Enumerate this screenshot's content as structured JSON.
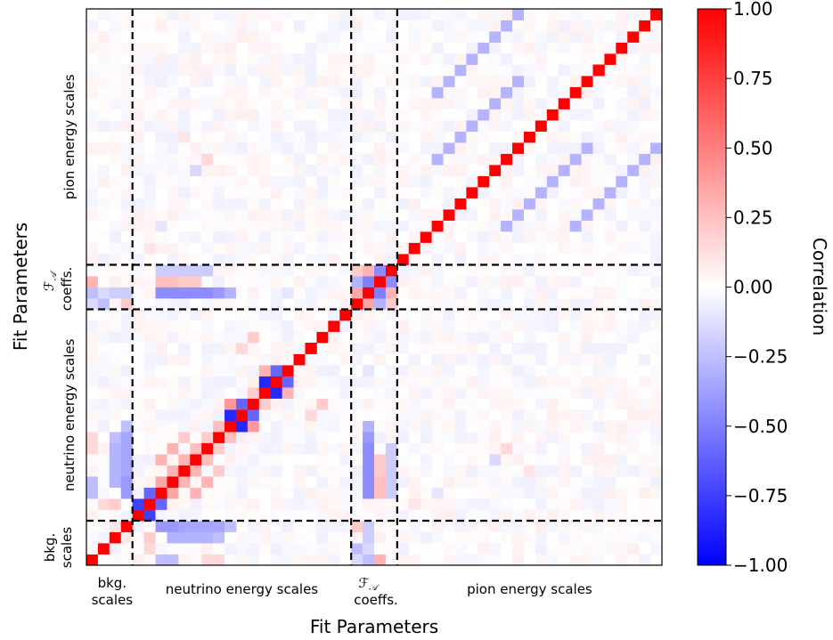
{
  "chart_data": {
    "type": "heatmap",
    "title": "",
    "xlabel": "Fit Parameters",
    "ylabel": "Fit Parameters",
    "n": 50,
    "colorbar": {
      "label": "Correlation",
      "vmin": -1.0,
      "vmax": 1.0,
      "ticks": [
        1.0,
        0.75,
        0.5,
        0.25,
        0.0,
        -0.25,
        -0.5,
        -0.75,
        -1.0
      ],
      "tick_labels": [
        "1.00",
        "0.75",
        "0.50",
        "0.25",
        "0.00",
        "−0.25",
        "−0.50",
        "−0.75",
        "−1.00"
      ],
      "colormap": "bwr",
      "colors": {
        "low": "#0000ff",
        "mid": "#ffffff",
        "high": "#ff0000"
      }
    },
    "groups": [
      {
        "label_lines": [
          "bkg.",
          "scales"
        ],
        "start": 0,
        "end": 4
      },
      {
        "label_lines": [
          "neutrino energy scales"
        ],
        "start": 4,
        "end": 23
      },
      {
        "label_lines": [
          "F_A",
          "coeffs."
        ],
        "start": 23,
        "end": 27
      },
      {
        "label_lines": [
          "pion energy scales"
        ],
        "start": 27,
        "end": 50
      }
    ],
    "group_label_text": {
      "bkg": [
        "bkg.",
        "scales"
      ],
      "neutrino": "neutrino energy scales",
      "fa_symbol": "ℱ",
      "fa_sub": "𝒜",
      "fa_coeffs": "coeffs.",
      "pion": "pion energy scales"
    },
    "boundaries": [
      4,
      23,
      27
    ],
    "diagonal_value": 1.0,
    "correlations": [
      {
        "i": 4,
        "j": 5,
        "value": -0.75
      },
      {
        "i": 5,
        "j": 6,
        "value": -0.6
      },
      {
        "i": 6,
        "j": 7,
        "value": 0.35
      },
      {
        "i": 7,
        "j": 8,
        "value": 0.3
      },
      {
        "i": 8,
        "j": 9,
        "value": 0.3
      },
      {
        "i": 9,
        "j": 10,
        "value": 0.25
      },
      {
        "i": 10,
        "j": 11,
        "value": 0.2
      },
      {
        "i": 12,
        "j": 13,
        "value": -0.85
      },
      {
        "i": 13,
        "j": 14,
        "value": -0.6
      },
      {
        "i": 12,
        "j": 14,
        "value": 0.4
      },
      {
        "i": 11,
        "j": 12,
        "value": 0.25
      },
      {
        "i": 15,
        "j": 16,
        "value": -0.85
      },
      {
        "i": 16,
        "j": 17,
        "value": -0.6
      },
      {
        "i": 15,
        "j": 17,
        "value": 0.3
      },
      {
        "i": 14,
        "j": 15,
        "value": 0.2
      },
      {
        "i": 7,
        "j": 10,
        "value": 0.3
      },
      {
        "i": 6,
        "j": 9,
        "value": 0.3
      },
      {
        "i": 8,
        "j": 11,
        "value": 0.2
      },
      {
        "i": 24,
        "j": 25,
        "value": -0.5
      },
      {
        "i": 25,
        "j": 26,
        "value": -0.45
      },
      {
        "i": 23,
        "j": 24,
        "value": 0.35
      },
      {
        "i": 24,
        "j": 26,
        "value": 0.3
      },
      {
        "i": 23,
        "j": 25,
        "value": -0.3
      },
      {
        "i": 23,
        "j": 26,
        "value": 0.2
      },
      {
        "i": 37,
        "j": 49,
        "value": -0.3
      },
      {
        "i": 36,
        "j": 48,
        "value": -0.3
      },
      {
        "i": 35,
        "j": 47,
        "value": -0.3
      },
      {
        "i": 34,
        "j": 46,
        "value": -0.3
      },
      {
        "i": 33,
        "j": 45,
        "value": -0.3
      },
      {
        "i": 32,
        "j": 44,
        "value": -0.3
      },
      {
        "i": 31,
        "j": 43,
        "value": -0.3
      },
      {
        "i": 30,
        "j": 42,
        "value": -0.3
      },
      {
        "i": 43,
        "j": 37,
        "value": -0.3
      },
      {
        "i": 42,
        "j": 36,
        "value": -0.3
      },
      {
        "i": 41,
        "j": 35,
        "value": -0.3
      },
      {
        "i": 40,
        "j": 34,
        "value": -0.3
      },
      {
        "i": 39,
        "j": 33,
        "value": -0.3
      },
      {
        "i": 38,
        "j": 32,
        "value": -0.3
      },
      {
        "i": 37,
        "j": 31,
        "value": -0.3
      },
      {
        "i": 36,
        "j": 30,
        "value": -0.3
      },
      {
        "i": 6,
        "j": 24,
        "value": -0.45
      },
      {
        "i": 7,
        "j": 24,
        "value": -0.45
      },
      {
        "i": 8,
        "j": 24,
        "value": -0.45
      },
      {
        "i": 9,
        "j": 24,
        "value": -0.45
      },
      {
        "i": 10,
        "j": 24,
        "value": -0.45
      },
      {
        "i": 11,
        "j": 24,
        "value": -0.4
      },
      {
        "i": 12,
        "j": 24,
        "value": -0.3
      },
      {
        "i": 6,
        "j": 26,
        "value": -0.2
      },
      {
        "i": 7,
        "j": 26,
        "value": -0.2
      },
      {
        "i": 8,
        "j": 26,
        "value": -0.2
      },
      {
        "i": 9,
        "j": 26,
        "value": -0.2
      },
      {
        "i": 10,
        "j": 26,
        "value": -0.2
      },
      {
        "i": 6,
        "j": 25,
        "value": 0.25
      },
      {
        "i": 7,
        "j": 25,
        "value": 0.25
      },
      {
        "i": 8,
        "j": 25,
        "value": 0.2
      },
      {
        "i": 9,
        "j": 25,
        "value": 0.2
      },
      {
        "i": 2,
        "j": 10,
        "value": -0.3
      },
      {
        "i": 2,
        "j": 9,
        "value": -0.3
      },
      {
        "i": 2,
        "j": 8,
        "value": -0.3
      },
      {
        "i": 2,
        "j": 7,
        "value": -0.3
      },
      {
        "i": 2,
        "j": 11,
        "value": -0.25
      },
      {
        "i": 3,
        "j": 6,
        "value": -0.4
      },
      {
        "i": 3,
        "j": 7,
        "value": -0.4
      },
      {
        "i": 3,
        "j": 8,
        "value": -0.35
      },
      {
        "i": 3,
        "j": 9,
        "value": -0.35
      },
      {
        "i": 3,
        "j": 10,
        "value": -0.35
      },
      {
        "i": 3,
        "j": 11,
        "value": -0.35
      },
      {
        "i": 3,
        "j": 12,
        "value": -0.25
      },
      {
        "i": 0,
        "j": 6,
        "value": -0.25
      },
      {
        "i": 0,
        "j": 7,
        "value": -0.25
      },
      {
        "i": 0,
        "j": 10,
        "value": 0.15
      },
      {
        "i": 0,
        "j": 11,
        "value": 0.15
      },
      {
        "i": 0,
        "j": 24,
        "value": -0.25
      },
      {
        "i": 0,
        "j": 25,
        "value": 0.3
      },
      {
        "i": 1,
        "j": 24,
        "value": -0.15
      },
      {
        "i": 2,
        "j": 24,
        "value": -0.2
      },
      {
        "i": 3,
        "j": 24,
        "value": -0.2
      },
      {
        "i": 1,
        "j": 23,
        "value": -0.25
      },
      {
        "i": 3,
        "j": 23,
        "value": 0.2
      },
      {
        "i": 0,
        "j": 23,
        "value": -0.15
      },
      {
        "i": 2,
        "j": 3,
        "value": 0.1
      },
      {
        "i": 2,
        "j": 5,
        "value": 0.2
      },
      {
        "i": 1,
        "j": 5,
        "value": 0.15
      },
      {
        "i": 14,
        "j": 20,
        "value": 0.2
      },
      {
        "i": 13,
        "j": 19,
        "value": 0.15
      },
      {
        "i": 17,
        "j": 24,
        "value": -0.1
      },
      {
        "i": 5,
        "j": 28,
        "value": 0.1
      },
      {
        "i": 6,
        "j": 30,
        "value": -0.1
      },
      {
        "i": 9,
        "j": 35,
        "value": -0.15
      },
      {
        "i": 10,
        "j": 36,
        "value": 0.15
      },
      {
        "i": 8,
        "j": 38,
        "value": 0.1
      }
    ]
  }
}
